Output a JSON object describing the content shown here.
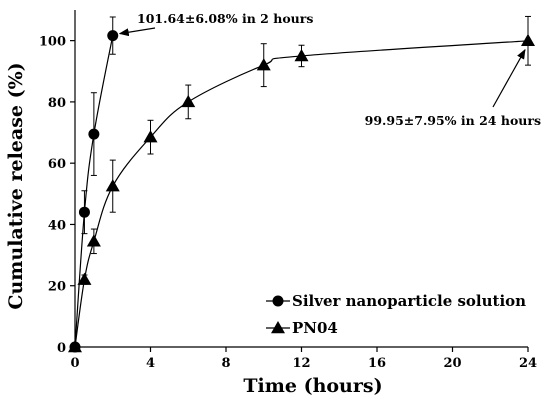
{
  "chart_data": {
    "type": "scatter",
    "xlabel": "Time (hours)",
    "ylabel": "Cumulative release (%)",
    "xlim": [
      0,
      24
    ],
    "ylim": [
      0,
      110
    ],
    "x_ticks": [
      0,
      4,
      8,
      12,
      16,
      20,
      24
    ],
    "y_ticks": [
      0,
      20,
      40,
      60,
      80,
      100
    ],
    "grid": false,
    "legend_position": "bottom-right",
    "series": [
      {
        "name": "Silver nanoparticle solution",
        "marker": "circle",
        "x": [
          0,
          0.5,
          1,
          2
        ],
        "y": [
          0,
          44,
          69.5,
          101.64
        ],
        "error": [
          0,
          7,
          13.5,
          6.08
        ]
      },
      {
        "name": "PN04",
        "marker": "triangle",
        "x": [
          0,
          0.5,
          1,
          2,
          4,
          6,
          10,
          12,
          24
        ],
        "y": [
          0,
          22,
          34.5,
          52.5,
          68.5,
          80,
          92,
          95,
          99.95
        ],
        "error": [
          0,
          1.5,
          4,
          8.5,
          5.5,
          5.5,
          7,
          3.5,
          7.95
        ]
      }
    ],
    "annotations": [
      {
        "text": "101.64±6.08% in 2 hours",
        "target_series": 0,
        "target_point": 3
      },
      {
        "text": "99.95±7.95% in 24 hours",
        "target_series": 1,
        "target_point": 8
      }
    ]
  }
}
